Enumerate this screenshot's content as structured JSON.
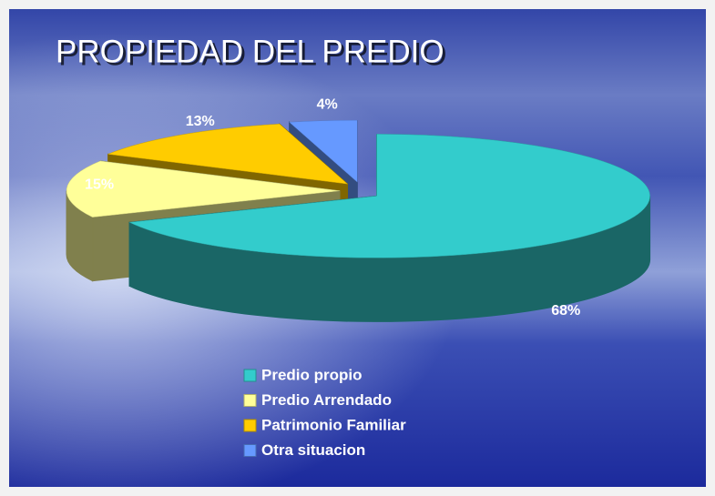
{
  "chart_data": {
    "type": "pie",
    "title": "PROPIEDAD DEL PREDIO",
    "categories": [
      "Predio propio",
      "Predio Arrendado",
      "Patrimonio Familiar",
      "Otra situacion"
    ],
    "values": [
      68,
      15,
      13,
      4
    ],
    "value_labels": [
      "68%",
      "15%",
      "13%",
      "4%"
    ],
    "colors": [
      "#33cccc",
      "#ffff99",
      "#ffcc00",
      "#6699ff"
    ],
    "legend": "bottom"
  }
}
